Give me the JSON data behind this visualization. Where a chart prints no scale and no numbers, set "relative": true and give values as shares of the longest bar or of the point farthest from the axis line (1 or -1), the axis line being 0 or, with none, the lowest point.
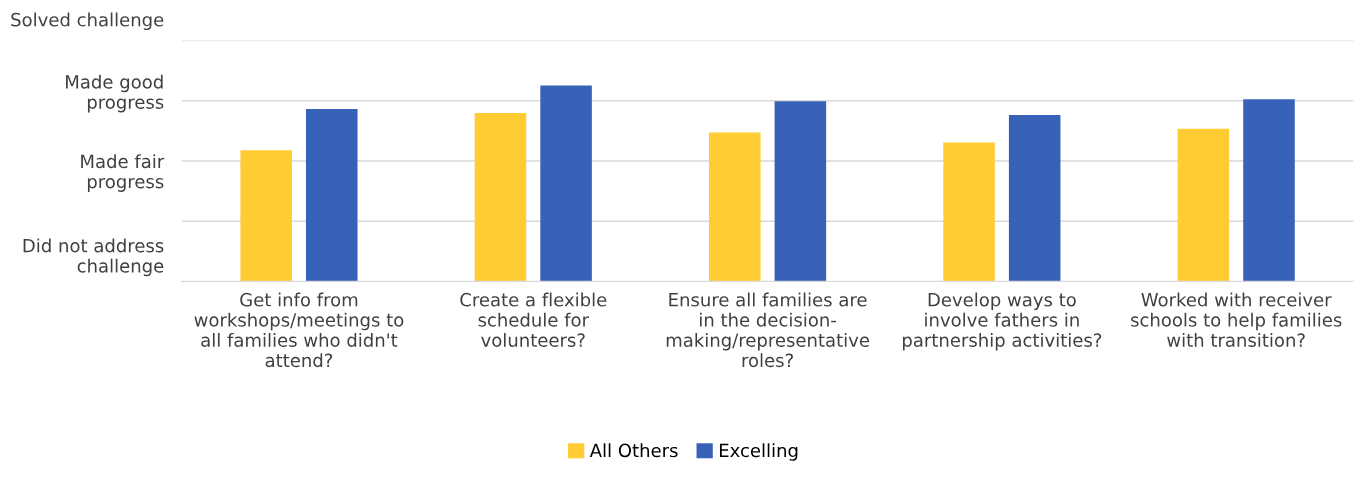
{
  "chart_data": {
    "type": "bar",
    "relative": true,
    "categories": [
      "Get info from\nworkshops/meetings to\nall families who didn't\nattend?",
      "Create a flexible\nschedule for\nvolunteers?",
      "Ensure all families are\nin the decision-\nmaking/representative\nroles?",
      "Develop ways to\ninvolve fathers in\npartnership activities?",
      "Worked with receiver\nschools to help families\nwith transition?"
    ],
    "series": [
      {
        "name": "All Others",
        "color": "#ffcc33",
        "values": [
          0.67,
          0.86,
          0.76,
          0.71,
          0.78
        ]
      },
      {
        "name": "Excelling",
        "color": "#3762b8",
        "values": [
          0.88,
          1,
          0.92,
          0.85,
          0.93
        ]
      }
    ],
    "annotations": [
      "Solved challenge",
      "Made good\nprogress",
      "Made fair\nprogress",
      "Did not address\nchallenge"
    ],
    "grid": "y",
    "legend": "bottom"
  }
}
